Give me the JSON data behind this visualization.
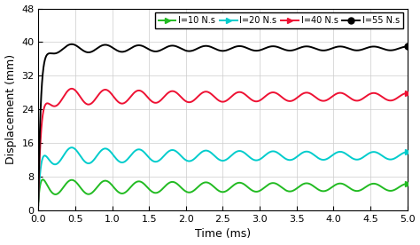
{
  "title": "",
  "xlabel": "Time (ms)",
  "ylabel": "Displacement (mm)",
  "xlim": [
    0,
    5
  ],
  "ylim": [
    0,
    48
  ],
  "yticks": [
    0,
    8,
    16,
    24,
    32,
    40,
    48
  ],
  "xticks": [
    0,
    0.5,
    1,
    1.5,
    2,
    2.5,
    3,
    3.5,
    4,
    4.5,
    5
  ],
  "series": [
    {
      "label": "I=10 N.s",
      "color": "#22bb22",
      "steady": 5.5,
      "peak": 8.5,
      "rise_k": 18.0,
      "osc_amp": 1.3,
      "osc_freq": 2.2,
      "osc_decay": 0.4,
      "end_marker": ">"
    },
    {
      "label": "I=20 N.s",
      "color": "#00cccc",
      "steady": 13.0,
      "peak": 16.0,
      "rise_k": 18.0,
      "osc_amp": 1.5,
      "osc_freq": 2.2,
      "osc_decay": 0.5,
      "end_marker": ">"
    },
    {
      "label": "I=40 N.s",
      "color": "#ee1133",
      "steady": 27.0,
      "peak": 30.0,
      "rise_k": 20.0,
      "osc_amp": 1.5,
      "osc_freq": 2.2,
      "osc_decay": 0.5,
      "end_marker": ">"
    },
    {
      "label": "I=55 N.s",
      "color": "#000000",
      "steady": 38.5,
      "peak": 41.0,
      "rise_k": 25.0,
      "osc_amp": 0.8,
      "osc_freq": 2.2,
      "osc_decay": 0.6,
      "end_marker": "o"
    }
  ],
  "legend_loc": "upper right",
  "grid": true,
  "background": "#ffffff",
  "lw": 1.4
}
